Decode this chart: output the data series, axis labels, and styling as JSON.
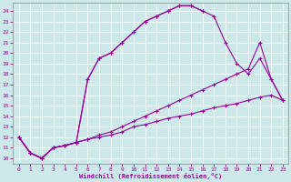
{
  "xlabel": "Windchill (Refroidissement éolien,°C)",
  "bg_color": "#cce8e8",
  "line_color": "#990099",
  "grid_color": "#ffffff",
  "xlim": [
    -0.5,
    23.5
  ],
  "ylim": [
    9.5,
    24.8
  ],
  "xticks": [
    0,
    1,
    2,
    3,
    4,
    5,
    6,
    7,
    8,
    9,
    10,
    11,
    12,
    13,
    14,
    15,
    16,
    17,
    18,
    19,
    20,
    21,
    22,
    23
  ],
  "yticks": [
    10,
    11,
    12,
    13,
    14,
    15,
    16,
    17,
    18,
    19,
    20,
    21,
    22,
    23,
    24
  ],
  "curve1_x": [
    0,
    1,
    2,
    3,
    4,
    5,
    6,
    7,
    8,
    9,
    10,
    11,
    12,
    13,
    14,
    15,
    16
  ],
  "curve1_y": [
    12.0,
    10.5,
    10.0,
    11.0,
    11.2,
    11.5,
    17.5,
    19.5,
    20.0,
    21.0,
    22.0,
    23.0,
    23.5,
    24.0,
    24.5,
    24.5,
    24.0
  ],
  "curve2_x": [
    0,
    1,
    2,
    3,
    4,
    5,
    6,
    7,
    8,
    9,
    10,
    11,
    12,
    13,
    14,
    15,
    16,
    17,
    18,
    19,
    20,
    21,
    22,
    23
  ],
  "curve2_y": [
    12.0,
    10.5,
    10.0,
    11.0,
    11.2,
    11.5,
    17.5,
    19.5,
    20.0,
    21.0,
    22.0,
    23.0,
    23.5,
    24.0,
    24.5,
    24.5,
    24.0,
    23.5,
    21.0,
    19.0,
    18.0,
    19.5,
    17.5,
    15.5
  ],
  "curve3_x": [
    0,
    1,
    2,
    3,
    4,
    5,
    6,
    7,
    8,
    9,
    10,
    11,
    12,
    13,
    14,
    15,
    16,
    17,
    18,
    19,
    20,
    21,
    22,
    23
  ],
  "curve3_y": [
    12.0,
    10.5,
    10.0,
    11.0,
    11.2,
    11.5,
    11.8,
    12.2,
    12.5,
    13.0,
    13.5,
    14.0,
    14.5,
    15.0,
    15.5,
    16.0,
    16.5,
    17.0,
    17.5,
    18.0,
    18.5,
    21.0,
    17.5,
    15.5
  ],
  "curve4_x": [
    0,
    1,
    2,
    3,
    4,
    5,
    6,
    7,
    8,
    9,
    10,
    11,
    12,
    13,
    14,
    15,
    16,
    17,
    18,
    19,
    20,
    21,
    22,
    23
  ],
  "curve4_y": [
    12.0,
    10.5,
    10.0,
    11.0,
    11.2,
    11.5,
    11.8,
    12.0,
    12.2,
    12.5,
    13.0,
    13.2,
    13.5,
    13.8,
    14.0,
    14.2,
    14.5,
    14.8,
    15.0,
    15.2,
    15.5,
    15.8,
    16.0,
    15.5
  ]
}
